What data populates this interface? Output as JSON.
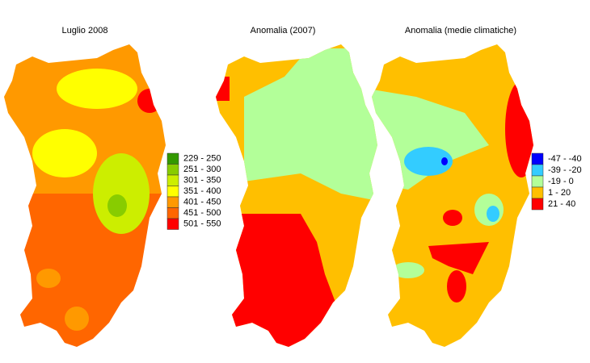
{
  "maps": [
    {
      "title": "Luglio 2008"
    },
    {
      "title": "Anomalia (2007)"
    },
    {
      "title": "Anomalia (medie climatiche)"
    }
  ],
  "legends": [
    {
      "items": [
        {
          "label": "229 - 250",
          "color": "#339900"
        },
        {
          "label": "251 - 300",
          "color": "#88cc00"
        },
        {
          "label": "301 - 350",
          "color": "#ccee00"
        },
        {
          "label": "351 - 400",
          "color": "#ffff00"
        },
        {
          "label": "401 - 450",
          "color": "#ff9900"
        },
        {
          "label": "451 - 500",
          "color": "#ff6600"
        },
        {
          "label": "501 - 550",
          "color": "#ff0000"
        }
      ]
    },
    {
      "items": [
        {
          "label": "-47 - -40",
          "color": "#0000ff"
        },
        {
          "label": "-39 - -20",
          "color": "#33ccff"
        },
        {
          "label": "-19 - 0",
          "color": "#b3ff99"
        },
        {
          "label": "1 - 20",
          "color": "#ffbf00"
        },
        {
          "label": "21 - 40",
          "color": "#ff0000"
        }
      ]
    }
  ]
}
